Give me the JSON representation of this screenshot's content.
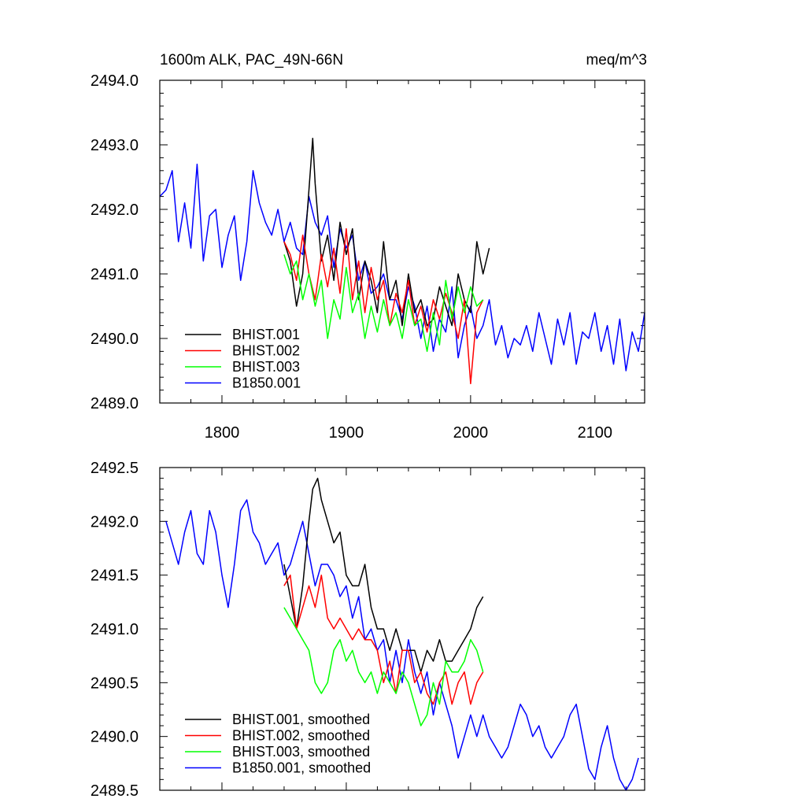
{
  "colors": {
    "BHIST.001": "#000000",
    "BHIST.002": "#ff0000",
    "BHIST.003": "#00ff00",
    "B1850.001": "#0000ff"
  },
  "chart_data": [
    {
      "type": "line",
      "title_left": "1600m ALK, PAC_49N-66N",
      "title_right": "meq/m^3",
      "xlabel": "",
      "ylabel": "",
      "xlim": [
        1750,
        2140
      ],
      "ylim": [
        2489.0,
        2494.0
      ],
      "xticks": [
        1800,
        1900,
        2000,
        2100
      ],
      "xtick_labels": [
        "1800",
        "1900",
        "2000",
        "2100"
      ],
      "yticks": [
        2489.0,
        2490.0,
        2491.0,
        2492.0,
        2493.0,
        2494.0
      ],
      "ytick_labels": [
        "2489.0",
        "2490.0",
        "2491.0",
        "2492.0",
        "2493.0",
        "2494.0"
      ],
      "legend_position": "bottom-left",
      "legend": [
        "BHIST.001",
        "BHIST.002",
        "BHIST.003",
        "B1850.001"
      ],
      "series": [
        {
          "name": "B1850.001",
          "x": [
            1750,
            1755,
            1760,
            1765,
            1770,
            1775,
            1780,
            1785,
            1790,
            1795,
            1800,
            1805,
            1810,
            1815,
            1820,
            1825,
            1830,
            1835,
            1840,
            1845,
            1850,
            1855,
            1860,
            1865,
            1870,
            1875,
            1880,
            1885,
            1890,
            1895,
            1900,
            1905,
            1910,
            1915,
            1920,
            1925,
            1930,
            1935,
            1940,
            1945,
            1950,
            1955,
            1960,
            1965,
            1970,
            1975,
            1980,
            1985,
            1990,
            1995,
            2000,
            2005,
            2010,
            2015,
            2020,
            2025,
            2030,
            2035,
            2040,
            2045,
            2050,
            2055,
            2060,
            2065,
            2070,
            2075,
            2080,
            2085,
            2090,
            2095,
            2100,
            2105,
            2110,
            2115,
            2120,
            2125,
            2130,
            2135,
            2140
          ],
          "values": [
            2492.2,
            2492.3,
            2492.6,
            2491.5,
            2492.1,
            2491.4,
            2492.7,
            2491.2,
            2491.9,
            2492.0,
            2491.1,
            2491.6,
            2491.9,
            2490.9,
            2491.5,
            2492.6,
            2492.1,
            2491.8,
            2491.6,
            2492.0,
            2491.5,
            2491.8,
            2491.4,
            2491.3,
            2492.2,
            2491.8,
            2491.6,
            2491.9,
            2491.1,
            2491.7,
            2491.4,
            2491.6,
            2490.9,
            2491.2,
            2490.7,
            2490.8,
            2491.0,
            2490.6,
            2490.6,
            2490.3,
            2490.8,
            2490.5,
            2490.0,
            2490.5,
            2489.8,
            2490.3,
            2490.1,
            2490.8,
            2489.7,
            2490.2,
            2490.5,
            2490.0,
            2490.2,
            2490.6,
            2489.9,
            2490.2,
            2489.7,
            2490.0,
            2489.9,
            2490.2,
            2489.8,
            2490.4,
            2490.0,
            2489.6,
            2490.3,
            2489.9,
            2490.4,
            2489.6,
            2490.1,
            2490.0,
            2490.4,
            2489.8,
            2490.2,
            2489.6,
            2490.3,
            2489.5,
            2490.1,
            2489.8,
            2490.4
          ]
        },
        {
          "name": "BHIST.001",
          "x": [
            1850,
            1855,
            1860,
            1865,
            1870,
            1873,
            1875,
            1880,
            1885,
            1890,
            1895,
            1900,
            1905,
            1910,
            1915,
            1920,
            1925,
            1930,
            1935,
            1940,
            1945,
            1950,
            1955,
            1960,
            1965,
            1970,
            1975,
            1980,
            1985,
            1990,
            1995,
            2000,
            2005,
            2010,
            2015
          ],
          "values": [
            2491.5,
            2491.2,
            2490.5,
            2491.0,
            2492.3,
            2493.1,
            2492.4,
            2491.2,
            2491.6,
            2490.9,
            2491.8,
            2491.3,
            2491.7,
            2490.6,
            2491.2,
            2490.9,
            2490.4,
            2491.5,
            2490.6,
            2490.9,
            2490.2,
            2491.0,
            2490.4,
            2490.6,
            2490.2,
            2490.3,
            2490.8,
            2490.5,
            2490.2,
            2491.0,
            2490.6,
            2490.4,
            2491.5,
            2491.0,
            2491.4
          ]
        },
        {
          "name": "BHIST.002",
          "x": [
            1850,
            1855,
            1860,
            1865,
            1870,
            1875,
            1880,
            1885,
            1890,
            1895,
            1900,
            1905,
            1910,
            1915,
            1920,
            1925,
            1930,
            1935,
            1940,
            1945,
            1950,
            1955,
            1960,
            1965,
            1970,
            1975,
            1980,
            1985,
            1990,
            1995,
            2000,
            2005,
            2010
          ],
          "values": [
            2491.5,
            2491.3,
            2490.9,
            2491.6,
            2491.0,
            2490.6,
            2491.3,
            2490.8,
            2491.4,
            2490.7,
            2491.7,
            2490.6,
            2491.2,
            2490.4,
            2491.1,
            2490.6,
            2490.9,
            2490.2,
            2490.7,
            2490.4,
            2490.9,
            2490.2,
            2490.5,
            2490.1,
            2490.6,
            2490.3,
            2490.7,
            2490.4,
            2490.0,
            2490.6,
            2489.3,
            2490.4,
            2490.6
          ]
        },
        {
          "name": "BHIST.003",
          "x": [
            1850,
            1855,
            1860,
            1865,
            1870,
            1875,
            1880,
            1885,
            1890,
            1895,
            1900,
            1905,
            1910,
            1915,
            1920,
            1925,
            1930,
            1935,
            1940,
            1945,
            1950,
            1955,
            1960,
            1965,
            1970,
            1975,
            1980,
            1985,
            1990,
            1995,
            2000,
            2005,
            2010
          ],
          "values": [
            2491.3,
            2491.0,
            2491.2,
            2490.6,
            2491.0,
            2490.5,
            2490.9,
            2490.0,
            2490.6,
            2490.3,
            2491.1,
            2490.4,
            2490.7,
            2490.0,
            2490.5,
            2490.1,
            2490.6,
            2490.2,
            2490.4,
            2490.0,
            2490.6,
            2490.2,
            2490.3,
            2489.8,
            2490.4,
            2489.9,
            2490.9,
            2490.3,
            2490.8,
            2490.4,
            2490.8,
            2490.5,
            2490.6
          ]
        }
      ]
    },
    {
      "type": "line",
      "title_left": "",
      "title_right": "",
      "xlabel": "",
      "ylabel": "",
      "xlim": [
        1750,
        2140
      ],
      "ylim": [
        2489.5,
        2492.5
      ],
      "xticks": [
        1800,
        1900,
        2000,
        2100
      ],
      "xtick_labels": [],
      "yticks": [
        2489.5,
        2490.0,
        2490.5,
        2491.0,
        2491.5,
        2492.0,
        2492.5
      ],
      "ytick_labels": [
        "2489.5",
        "2490.0",
        "2490.5",
        "2491.0",
        "2491.5",
        "2492.0",
        "2492.5"
      ],
      "legend_position": "bottom-left",
      "legend": [
        "BHIST.001, smoothed",
        "BHIST.002, smoothed",
        "BHIST.003, smoothed",
        "B1850.001, smoothed"
      ],
      "series": [
        {
          "name": "B1850.001, smoothed",
          "x": [
            1755,
            1760,
            1765,
            1770,
            1775,
            1780,
            1785,
            1790,
            1795,
            1800,
            1805,
            1810,
            1815,
            1820,
            1825,
            1830,
            1835,
            1840,
            1845,
            1850,
            1855,
            1860,
            1865,
            1870,
            1875,
            1880,
            1885,
            1890,
            1895,
            1900,
            1905,
            1910,
            1915,
            1920,
            1925,
            1930,
            1935,
            1940,
            1945,
            1950,
            1955,
            1960,
            1965,
            1970,
            1975,
            1980,
            1985,
            1990,
            1995,
            2000,
            2005,
            2010,
            2015,
            2020,
            2025,
            2030,
            2035,
            2040,
            2045,
            2050,
            2055,
            2060,
            2065,
            2070,
            2075,
            2080,
            2085,
            2090,
            2095,
            2100,
            2105,
            2110,
            2115,
            2120,
            2125,
            2130,
            2135
          ],
          "values": [
            2492.0,
            2491.8,
            2491.6,
            2491.9,
            2492.1,
            2491.7,
            2491.6,
            2492.1,
            2491.9,
            2491.5,
            2491.2,
            2491.6,
            2492.1,
            2492.2,
            2491.9,
            2491.8,
            2491.6,
            2491.7,
            2491.8,
            2491.5,
            2491.6,
            2491.8,
            2492.0,
            2491.7,
            2491.4,
            2491.6,
            2491.6,
            2491.5,
            2491.3,
            2491.4,
            2491.1,
            2491.3,
            2490.9,
            2491.0,
            2490.8,
            2490.9,
            2490.5,
            2490.8,
            2490.5,
            2490.9,
            2490.6,
            2490.4,
            2490.6,
            2490.2,
            2490.5,
            2490.3,
            2490.1,
            2489.8,
            2490.0,
            2490.2,
            2490.0,
            2490.2,
            2490.0,
            2489.9,
            2489.8,
            2489.9,
            2490.1,
            2490.3,
            2490.2,
            2490.0,
            2490.1,
            2489.9,
            2489.8,
            2489.9,
            2490.0,
            2490.2,
            2490.3,
            2490.0,
            2489.7,
            2489.6,
            2489.9,
            2490.1,
            2489.8,
            2489.6,
            2489.5,
            2489.6,
            2489.8
          ]
        },
        {
          "name": "BHIST.001, smoothed",
          "x": [
            1850,
            1855,
            1860,
            1865,
            1870,
            1873,
            1877,
            1880,
            1885,
            1890,
            1895,
            1900,
            1905,
            1910,
            1915,
            1920,
            1925,
            1930,
            1935,
            1940,
            1945,
            1950,
            1955,
            1960,
            1965,
            1970,
            1975,
            1980,
            1985,
            1990,
            1995,
            2000,
            2005,
            2010
          ],
          "values": [
            2491.6,
            2491.3,
            2491.0,
            2491.4,
            2492.0,
            2492.3,
            2492.4,
            2492.2,
            2492.0,
            2491.8,
            2491.9,
            2491.5,
            2491.4,
            2491.4,
            2491.6,
            2491.2,
            2491.0,
            2491.0,
            2490.8,
            2491.0,
            2490.8,
            2490.8,
            2490.8,
            2490.6,
            2490.8,
            2490.7,
            2490.9,
            2490.7,
            2490.7,
            2490.8,
            2490.9,
            2491.0,
            2491.2,
            2491.3
          ]
        },
        {
          "name": "BHIST.002, smoothed",
          "x": [
            1850,
            1855,
            1860,
            1865,
            1870,
            1875,
            1880,
            1885,
            1890,
            1895,
            1900,
            1905,
            1910,
            1915,
            1920,
            1925,
            1930,
            1935,
            1940,
            1945,
            1950,
            1955,
            1960,
            1965,
            1970,
            1975,
            1980,
            1985,
            1990,
            1995,
            2000,
            2005,
            2010
          ],
          "values": [
            2491.4,
            2491.5,
            2491.0,
            2491.2,
            2491.4,
            2491.2,
            2491.5,
            2491.1,
            2491.0,
            2491.1,
            2491.0,
            2490.9,
            2491.0,
            2490.9,
            2490.9,
            2490.8,
            2490.5,
            2490.7,
            2490.4,
            2490.8,
            2490.8,
            2490.5,
            2490.6,
            2490.4,
            2490.3,
            2490.5,
            2490.6,
            2490.3,
            2490.5,
            2490.6,
            2490.3,
            2490.5,
            2490.6
          ]
        },
        {
          "name": "BHIST.003, smoothed",
          "x": [
            1850,
            1855,
            1860,
            1865,
            1870,
            1875,
            1880,
            1885,
            1890,
            1895,
            1900,
            1905,
            1910,
            1915,
            1920,
            1925,
            1930,
            1935,
            1940,
            1945,
            1950,
            1955,
            1960,
            1965,
            1970,
            1975,
            1980,
            1985,
            1990,
            1995,
            2000,
            2005,
            2010
          ],
          "values": [
            2491.2,
            2491.1,
            2491.0,
            2490.9,
            2490.8,
            2490.5,
            2490.4,
            2490.5,
            2490.8,
            2490.9,
            2490.7,
            2490.8,
            2490.6,
            2490.5,
            2490.6,
            2490.4,
            2490.6,
            2490.5,
            2490.4,
            2490.6,
            2490.5,
            2490.3,
            2490.1,
            2490.2,
            2490.5,
            2490.3,
            2490.7,
            2490.6,
            2490.6,
            2490.7,
            2490.9,
            2490.8,
            2490.6
          ]
        }
      ]
    }
  ]
}
